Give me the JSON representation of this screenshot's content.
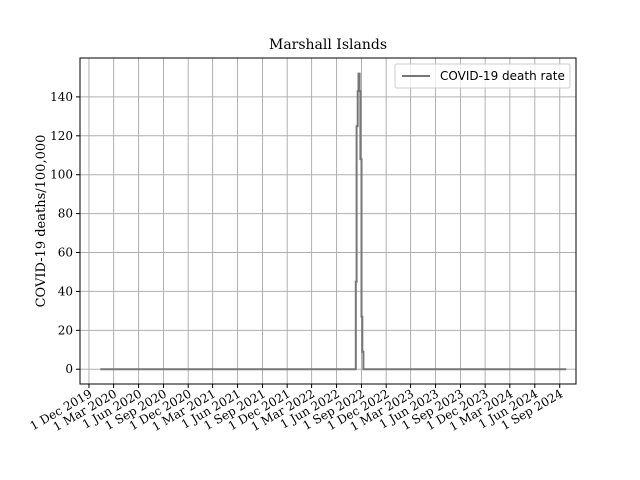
{
  "chart_data": {
    "type": "line",
    "title": "Marshall Islands",
    "xlabel": "",
    "ylabel": "COVID-19 deaths/100,000",
    "x_type": "date",
    "xlim": [
      "2019-10-29",
      "2024-10-31"
    ],
    "ylim": [
      -7.6,
      160
    ],
    "grid": true,
    "legend_position": "top-right",
    "colors": {
      "series": "#777777",
      "grid": "#b0b0b0",
      "axes": "#000000"
    },
    "x_ticks": [
      "2019-12-01",
      "2020-03-01",
      "2020-06-01",
      "2020-09-01",
      "2020-12-01",
      "2021-03-01",
      "2021-06-01",
      "2021-09-01",
      "2021-12-01",
      "2022-03-01",
      "2022-06-01",
      "2022-09-01",
      "2022-12-01",
      "2023-03-01",
      "2023-06-01",
      "2023-09-01",
      "2023-12-01",
      "2024-03-01",
      "2024-06-01",
      "2024-09-01"
    ],
    "x_tick_labels": [
      "1 Dec 2019",
      "1 Mar 2020",
      "1 Jun 2020",
      "1 Sep 2020",
      "1 Dec 2020",
      "1 Mar 2021",
      "1 Jun 2021",
      "1 Sep 2021",
      "1 Dec 2021",
      "1 Mar 2022",
      "1 Jun 2022",
      "1 Sep 2022",
      "1 Dec 2022",
      "1 Mar 2023",
      "1 Jun 2023",
      "1 Sep 2023",
      "1 Dec 2023",
      "1 Mar 2024",
      "1 Jun 2024",
      "1 Sep 2024"
    ],
    "y_ticks": [
      0,
      20,
      40,
      60,
      80,
      100,
      120,
      140
    ],
    "y_tick_labels": [
      "0",
      "20",
      "40",
      "60",
      "80",
      "100",
      "120",
      "140"
    ],
    "series": [
      {
        "name": "COVID-19 death rate",
        "step": true,
        "x": [
          "2020-01-12",
          "2022-08-07",
          "2022-08-11",
          "2022-08-14",
          "2022-08-18",
          "2022-08-21",
          "2022-08-25",
          "2022-08-28",
          "2022-09-01",
          "2022-09-04",
          "2022-09-08",
          "2022-09-11",
          "2022-09-15",
          "2022-09-18",
          "2024-09-25"
        ],
        "y": [
          0,
          0,
          45,
          125,
          143,
          152,
          143,
          108,
          27,
          9,
          0,
          0,
          0,
          0,
          0
        ]
      }
    ]
  }
}
